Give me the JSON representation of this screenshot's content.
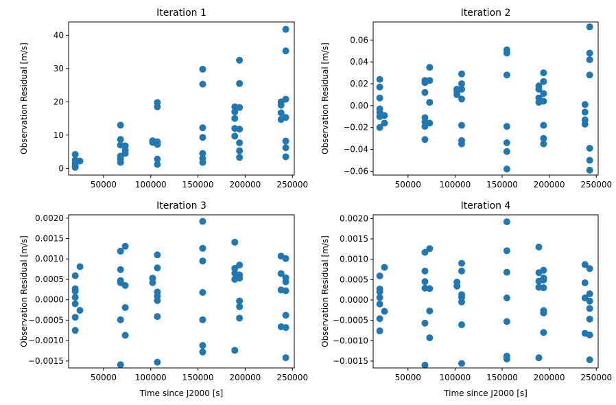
{
  "chart_data": [
    {
      "type": "scatter",
      "title": "Iteration 1",
      "xlabel": "",
      "ylabel": "Observation Residual [m/s]",
      "xlim": [
        13000,
        252000
      ],
      "ylim": [
        -2,
        44
      ],
      "xticks": [
        50000,
        100000,
        150000,
        200000,
        250000
      ],
      "xtick_labels": [
        "50000",
        "100000",
        "150000",
        "200000",
        "250000"
      ],
      "yticks": [
        0,
        10,
        20,
        30,
        40
      ],
      "ytick_labels": [
        "0",
        "10",
        "20",
        "30",
        "40"
      ],
      "grid": false,
      "color": "#1f77b4",
      "points": [
        [
          20000,
          4.2
        ],
        [
          20000,
          2.5
        ],
        [
          20000,
          1.5
        ],
        [
          20000,
          0.8
        ],
        [
          20000,
          0.3
        ],
        [
          25000,
          2.2
        ],
        [
          68000,
          13.0
        ],
        [
          68000,
          8.7
        ],
        [
          68000,
          7.0
        ],
        [
          68000,
          3.7
        ],
        [
          68000,
          2.8
        ],
        [
          68000,
          1.8
        ],
        [
          73000,
          6.8
        ],
        [
          73000,
          5.5
        ],
        [
          73000,
          4.5
        ],
        [
          102000,
          8.3
        ],
        [
          102000,
          7.8
        ],
        [
          107000,
          19.8
        ],
        [
          107000,
          18.5
        ],
        [
          107000,
          8.0
        ],
        [
          107000,
          7.2
        ],
        [
          107000,
          2.8
        ],
        [
          107000,
          1.2
        ],
        [
          155000,
          29.8
        ],
        [
          155000,
          25.3
        ],
        [
          155000,
          12.2
        ],
        [
          155000,
          9.3
        ],
        [
          155000,
          4.5
        ],
        [
          155000,
          3.0
        ],
        [
          155000,
          1.8
        ],
        [
          189000,
          18.5
        ],
        [
          189000,
          17.0
        ],
        [
          189000,
          15.0
        ],
        [
          189000,
          12.0
        ],
        [
          189000,
          9.7
        ],
        [
          194000,
          32.5
        ],
        [
          194000,
          25.5
        ],
        [
          194000,
          18.3
        ],
        [
          194000,
          11.8
        ],
        [
          194000,
          7.7
        ],
        [
          194000,
          5.3
        ],
        [
          194000,
          3.3
        ],
        [
          238000,
          20.0
        ],
        [
          238000,
          19.0
        ],
        [
          238000,
          16.7
        ],
        [
          238000,
          14.7
        ],
        [
          243000,
          41.8
        ],
        [
          243000,
          35.3
        ],
        [
          243000,
          20.8
        ],
        [
          243000,
          15.3
        ],
        [
          243000,
          8.2
        ],
        [
          243000,
          6.2
        ],
        [
          243000,
          3.5
        ]
      ]
    },
    {
      "type": "scatter",
      "title": "Iteration 2",
      "xlabel": "",
      "ylabel": "Observation Residual [m/s]",
      "xlim": [
        13000,
        252000
      ],
      "ylim": [
        -0.0635,
        0.0765
      ],
      "xticks": [
        50000,
        100000,
        150000,
        200000,
        250000
      ],
      "xtick_labels": [
        "50000",
        "100000",
        "150000",
        "200000",
        "250000"
      ],
      "yticks": [
        -0.06,
        -0.04,
        -0.02,
        0.0,
        0.02,
        0.04,
        0.06
      ],
      "ytick_labels": [
        "−0.06",
        "−0.04",
        "−0.02",
        "0.00",
        "0.02",
        "0.04",
        "0.06"
      ],
      "grid": false,
      "color": "#1f77b4",
      "points": [
        [
          20000,
          0.024
        ],
        [
          20000,
          0.017
        ],
        [
          20000,
          0.007
        ],
        [
          20000,
          -0.003
        ],
        [
          20000,
          -0.006
        ],
        [
          20000,
          -0.01
        ],
        [
          20000,
          -0.02
        ],
        [
          25000,
          -0.009
        ],
        [
          25000,
          -0.016
        ],
        [
          68000,
          0.023
        ],
        [
          68000,
          0.021
        ],
        [
          68000,
          0.012
        ],
        [
          68000,
          -0.011
        ],
        [
          68000,
          -0.015
        ],
        [
          68000,
          -0.019
        ],
        [
          68000,
          -0.031
        ],
        [
          73000,
          0.035
        ],
        [
          73000,
          0.023
        ],
        [
          73000,
          0.003
        ],
        [
          73000,
          -0.016
        ],
        [
          102000,
          0.015
        ],
        [
          102000,
          0.013
        ],
        [
          102000,
          0.01
        ],
        [
          107000,
          0.029
        ],
        [
          107000,
          0.02
        ],
        [
          107000,
          0.015
        ],
        [
          107000,
          0.006
        ],
        [
          107000,
          -0.018
        ],
        [
          107000,
          -0.032
        ],
        [
          107000,
          -0.035
        ],
        [
          155000,
          0.051
        ],
        [
          155000,
          0.048
        ],
        [
          155000,
          0.028
        ],
        [
          155000,
          -0.019
        ],
        [
          155000,
          -0.034
        ],
        [
          155000,
          -0.042
        ],
        [
          155000,
          -0.058
        ],
        [
          189000,
          0.018
        ],
        [
          189000,
          0.015
        ],
        [
          189000,
          0.007
        ],
        [
          189000,
          0.003
        ],
        [
          194000,
          0.03
        ],
        [
          194000,
          0.022
        ],
        [
          194000,
          0.011
        ],
        [
          194000,
          0.004
        ],
        [
          194000,
          -0.018
        ],
        [
          194000,
          -0.03
        ],
        [
          194000,
          -0.035
        ],
        [
          238000,
          0.001
        ],
        [
          238000,
          -0.006
        ],
        [
          238000,
          -0.013
        ],
        [
          238000,
          -0.017
        ],
        [
          243000,
          0.072
        ],
        [
          243000,
          0.048
        ],
        [
          243000,
          0.042
        ],
        [
          243000,
          0.028
        ],
        [
          243000,
          -0.039
        ],
        [
          243000,
          -0.05
        ],
        [
          243000,
          -0.059
        ]
      ]
    },
    {
      "type": "scatter",
      "title": "Iteration 3",
      "xlabel": "Time since J2000 [s]",
      "ylabel": "Observation Residual [m/s]",
      "xlim": [
        13000,
        252000
      ],
      "ylim": [
        -0.00167,
        0.00208
      ],
      "xticks": [
        50000,
        100000,
        150000,
        200000,
        250000
      ],
      "xtick_labels": [
        "50000",
        "100000",
        "150000",
        "200000",
        "250000"
      ],
      "yticks": [
        -0.0015,
        -0.001,
        -0.0005,
        0.0,
        0.0005,
        0.001,
        0.0015,
        0.002
      ],
      "ytick_labels": [
        "−0.0015",
        "−0.0010",
        "−0.0005",
        "0.0000",
        "0.0005",
        "0.0010",
        "0.0015",
        "0.0020"
      ],
      "grid": false,
      "color": "#1f77b4",
      "points": [
        [
          20000,
          0.00059
        ],
        [
          20000,
          0.00027
        ],
        [
          20000,
          0.00021
        ],
        [
          20000,
          6e-05
        ],
        [
          20000,
          -0.0001
        ],
        [
          20000,
          -0.00043
        ],
        [
          20000,
          -0.00075
        ],
        [
          25000,
          0.00081
        ],
        [
          25000,
          -0.00026
        ],
        [
          68000,
          0.00119
        ],
        [
          68000,
          0.00074
        ],
        [
          68000,
          0.00047
        ],
        [
          68000,
          0.00042
        ],
        [
          68000,
          -0.00049
        ],
        [
          68000,
          -0.00159
        ],
        [
          73000,
          0.00131
        ],
        [
          73000,
          0.00035
        ],
        [
          73000,
          -0.00019
        ],
        [
          73000,
          -0.00087
        ],
        [
          102000,
          0.00053
        ],
        [
          102000,
          0.00042
        ],
        [
          107000,
          0.0011
        ],
        [
          107000,
          0.00078
        ],
        [
          107000,
          0.00019
        ],
        [
          107000,
          9e-05
        ],
        [
          107000,
          -2e-05
        ],
        [
          107000,
          -0.00041
        ],
        [
          107000,
          -0.00153
        ],
        [
          155000,
          0.00192
        ],
        [
          155000,
          0.00126
        ],
        [
          155000,
          0.00095
        ],
        [
          155000,
          0.00018
        ],
        [
          155000,
          -0.00049
        ],
        [
          155000,
          -0.00112
        ],
        [
          155000,
          -0.00128
        ],
        [
          189000,
          0.00141
        ],
        [
          189000,
          0.00077
        ],
        [
          189000,
          0.00065
        ],
        [
          189000,
          0.0005
        ],
        [
          189000,
          -0.00124
        ],
        [
          194000,
          0.00085
        ],
        [
          194000,
          0.00061
        ],
        [
          194000,
          0.00053
        ],
        [
          194000,
          -3e-05
        ],
        [
          194000,
          -0.00017
        ],
        [
          194000,
          -0.00045
        ],
        [
          238000,
          0.00107
        ],
        [
          238000,
          0.00064
        ],
        [
          238000,
          0.00024
        ],
        [
          238000,
          -0.00066
        ],
        [
          243000,
          0.00101
        ],
        [
          243000,
          0.00054
        ],
        [
          243000,
          0.00044
        ],
        [
          243000,
          0.00022
        ],
        [
          243000,
          -0.00038
        ],
        [
          243000,
          -0.00068
        ],
        [
          243000,
          -0.00142
        ]
      ]
    },
    {
      "type": "scatter",
      "title": "Iteration 4",
      "xlabel": "Time since J2000 [s]",
      "ylabel": "Observation Residual [m/s]",
      "xlim": [
        13000,
        252000
      ],
      "ylim": [
        -0.00167,
        0.00209
      ],
      "xticks": [
        50000,
        100000,
        150000,
        200000,
        250000
      ],
      "xtick_labels": [
        "50000",
        "100000",
        "150000",
        "200000",
        "250000"
      ],
      "yticks": [
        -0.0015,
        -0.001,
        -0.0005,
        0.0,
        0.0005,
        0.001,
        0.0015,
        0.002
      ],
      "ytick_labels": [
        "−0.0015",
        "−0.0010",
        "−0.0005",
        "0.0000",
        "0.0005",
        "0.0010",
        "0.0015",
        "0.0020"
      ],
      "grid": false,
      "color": "#1f77b4",
      "points": [
        [
          20000,
          0.00059
        ],
        [
          20000,
          0.00027
        ],
        [
          20000,
          0.0002
        ],
        [
          20000,
          6e-05
        ],
        [
          20000,
          -0.0001
        ],
        [
          20000,
          -0.00046
        ],
        [
          20000,
          -0.00076
        ],
        [
          25000,
          0.0008
        ],
        [
          25000,
          -0.00028
        ],
        [
          68000,
          0.00117
        ],
        [
          68000,
          0.00071
        ],
        [
          68000,
          0.00045
        ],
        [
          68000,
          0.00029
        ],
        [
          68000,
          -0.00057
        ],
        [
          68000,
          -0.0016
        ],
        [
          73000,
          0.00126
        ],
        [
          73000,
          0.00028
        ],
        [
          73000,
          -0.00027
        ],
        [
          73000,
          -0.00093
        ],
        [
          102000,
          0.00044
        ],
        [
          102000,
          0.00034
        ],
        [
          107000,
          0.0009
        ],
        [
          107000,
          0.00071
        ],
        [
          107000,
          0.00013
        ],
        [
          107000,
          6e-05
        ],
        [
          107000,
          -5e-05
        ],
        [
          107000,
          -0.00061
        ],
        [
          107000,
          -0.00156
        ],
        [
          155000,
          0.00192
        ],
        [
          155000,
          0.00121
        ],
        [
          155000,
          0.00068
        ],
        [
          155000,
          5e-05
        ],
        [
          155000,
          -0.00053
        ],
        [
          155000,
          -0.00138
        ],
        [
          155000,
          -0.00145
        ],
        [
          189000,
          0.0013
        ],
        [
          189000,
          0.00067
        ],
        [
          189000,
          0.00046
        ],
        [
          189000,
          0.00031
        ],
        [
          189000,
          -0.00142
        ],
        [
          194000,
          0.00073
        ],
        [
          194000,
          0.00054
        ],
        [
          194000,
          0.00049
        ],
        [
          194000,
          0.0003
        ],
        [
          194000,
          -0.00026
        ],
        [
          194000,
          -0.00032
        ],
        [
          194000,
          -0.0008
        ],
        [
          238000,
          0.00087
        ],
        [
          238000,
          0.00042
        ],
        [
          238000,
          5e-05
        ],
        [
          238000,
          -0.00082
        ],
        [
          243000,
          0.00077
        ],
        [
          243000,
          0.00015
        ],
        [
          243000,
          -3e-05
        ],
        [
          243000,
          -0.00021
        ],
        [
          243000,
          -0.00047
        ],
        [
          243000,
          -0.00086
        ],
        [
          243000,
          -0.00147
        ]
      ]
    }
  ]
}
